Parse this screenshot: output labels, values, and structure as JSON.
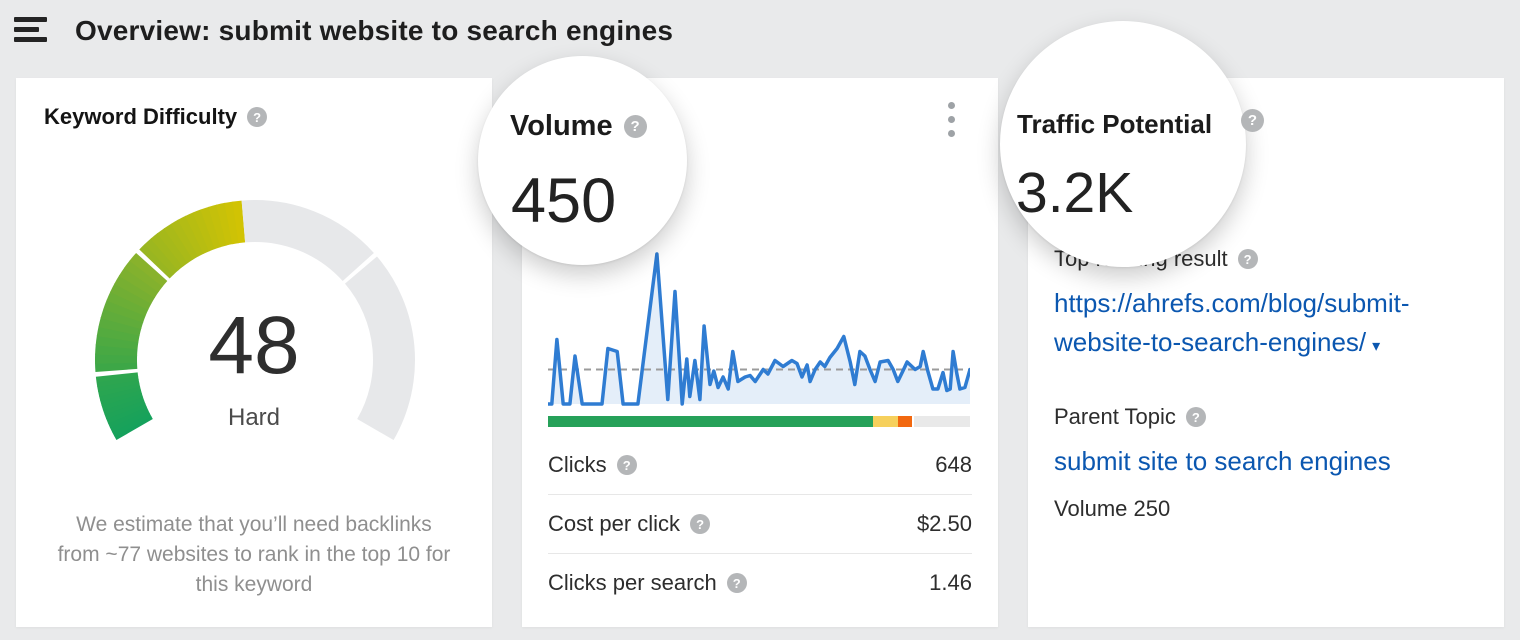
{
  "icons": {
    "help": "?",
    "caret_down": "▾"
  },
  "header": {
    "title": "Overview: submit website to search engines"
  },
  "keyword_difficulty": {
    "title": "Keyword Difficulty",
    "value": "48",
    "rating": "Hard",
    "note": "We estimate that you’ll need backlinks from ~77 websites to rank in the top 10 for this keyword",
    "gauge": {
      "min": 0,
      "max": 100,
      "value": 48,
      "start_deg": 210,
      "sweep_deg": 240,
      "segments": [
        {
          "from": 0,
          "to": 10,
          "color_start": "#14a15c",
          "color_end": "#2fa64e"
        },
        {
          "from": 10.7,
          "to": 30,
          "color_start": "#3aa748",
          "color_end": "#8bb22b"
        },
        {
          "from": 30.7,
          "to": 48,
          "color_start": "#97b622",
          "color_end": "#d3c303"
        },
        {
          "from": 48,
          "to": 70,
          "color_start": "#e7e8ea",
          "color_end": "#e7e8ea"
        },
        {
          "from": 70.7,
          "to": 100,
          "color_start": "#e7e8ea",
          "color_end": "#e7e8ea"
        }
      ]
    }
  },
  "volume": {
    "title": "Volume",
    "value": "450",
    "metrics": [
      {
        "label": "Clicks",
        "value": "648"
      },
      {
        "label": "Cost per click",
        "value": "$2.50"
      },
      {
        "label": "Clicks per search",
        "value": "1.46"
      }
    ],
    "clicks_bar": {
      "segments": [
        {
          "color": "#26a159",
          "pct": 77
        },
        {
          "color": "#f6d05c",
          "pct": 6
        },
        {
          "color": "#f2680f",
          "pct": 3.3
        },
        {
          "color": "#ffffff",
          "pct": 0.5
        },
        {
          "color": "#e9e9e9",
          "pct": 13.2
        }
      ]
    },
    "chart_data": {
      "type": "line",
      "title": "Search volume trend sparkline (relative scale)",
      "line_color": "#2f7cd2",
      "fill_color": "rgba(47,124,210,0.13)",
      "avg_line_value": 23,
      "ylim": [
        0,
        100
      ],
      "points": [
        [
          0,
          0
        ],
        [
          0.9,
          0
        ],
        [
          2.1,
          43
        ],
        [
          3.6,
          0
        ],
        [
          5.2,
          0
        ],
        [
          6.4,
          32
        ],
        [
          8.1,
          0
        ],
        [
          12.8,
          0
        ],
        [
          14.2,
          37
        ],
        [
          16.4,
          35
        ],
        [
          17.8,
          0
        ],
        [
          21.3,
          0
        ],
        [
          25.8,
          100
        ],
        [
          28.4,
          3
        ],
        [
          30.1,
          75
        ],
        [
          31.8,
          0
        ],
        [
          32.9,
          30
        ],
        [
          33.6,
          5
        ],
        [
          34.8,
          29
        ],
        [
          36,
          3
        ],
        [
          37,
          52
        ],
        [
          38.4,
          13
        ],
        [
          39.3,
          22
        ],
        [
          40.3,
          11
        ],
        [
          41.5,
          18
        ],
        [
          42.7,
          10
        ],
        [
          43.8,
          35
        ],
        [
          45,
          15
        ],
        [
          46.7,
          18
        ],
        [
          47.9,
          19
        ],
        [
          49.1,
          15
        ],
        [
          51,
          23
        ],
        [
          52.1,
          20
        ],
        [
          53.8,
          29
        ],
        [
          55.7,
          25
        ],
        [
          57.8,
          29
        ],
        [
          59,
          27
        ],
        [
          60.2,
          18
        ],
        [
          61.4,
          26
        ],
        [
          62.1,
          15
        ],
        [
          63.3,
          23
        ],
        [
          64.5,
          28
        ],
        [
          65.6,
          25
        ],
        [
          66.8,
          31
        ],
        [
          68.5,
          37
        ],
        [
          70.1,
          45
        ],
        [
          71.6,
          28
        ],
        [
          72.7,
          13
        ],
        [
          73.9,
          35
        ],
        [
          75.1,
          32
        ],
        [
          76.3,
          23
        ],
        [
          77.5,
          15
        ],
        [
          78.7,
          28
        ],
        [
          80.6,
          29
        ],
        [
          81.8,
          23
        ],
        [
          82.9,
          15
        ],
        [
          84.1,
          22
        ],
        [
          85.1,
          28
        ],
        [
          87,
          23
        ],
        [
          88.2,
          25
        ],
        [
          88.9,
          35
        ],
        [
          90,
          22
        ],
        [
          91.2,
          10
        ],
        [
          92.4,
          10
        ],
        [
          93.6,
          21
        ],
        [
          94.5,
          9
        ],
        [
          95.3,
          10
        ],
        [
          96,
          35
        ],
        [
          96.9,
          20
        ],
        [
          97.6,
          10
        ],
        [
          98.8,
          11
        ],
        [
          100,
          23
        ]
      ]
    }
  },
  "traffic_potential": {
    "title": "Traffic Potential",
    "value": "3.2K",
    "top_ranking_result": {
      "label": "Top ranking result",
      "url": "https://ahrefs.com/blog/submit-website-to-search-engines/",
      "display_lines": [
        "https://ahrefs.com/blog/submit-",
        "website-to-search-engines/"
      ]
    },
    "parent_topic": {
      "label": "Parent Topic",
      "link": "submit site to search engines",
      "volume_text": "Volume 250"
    }
  }
}
